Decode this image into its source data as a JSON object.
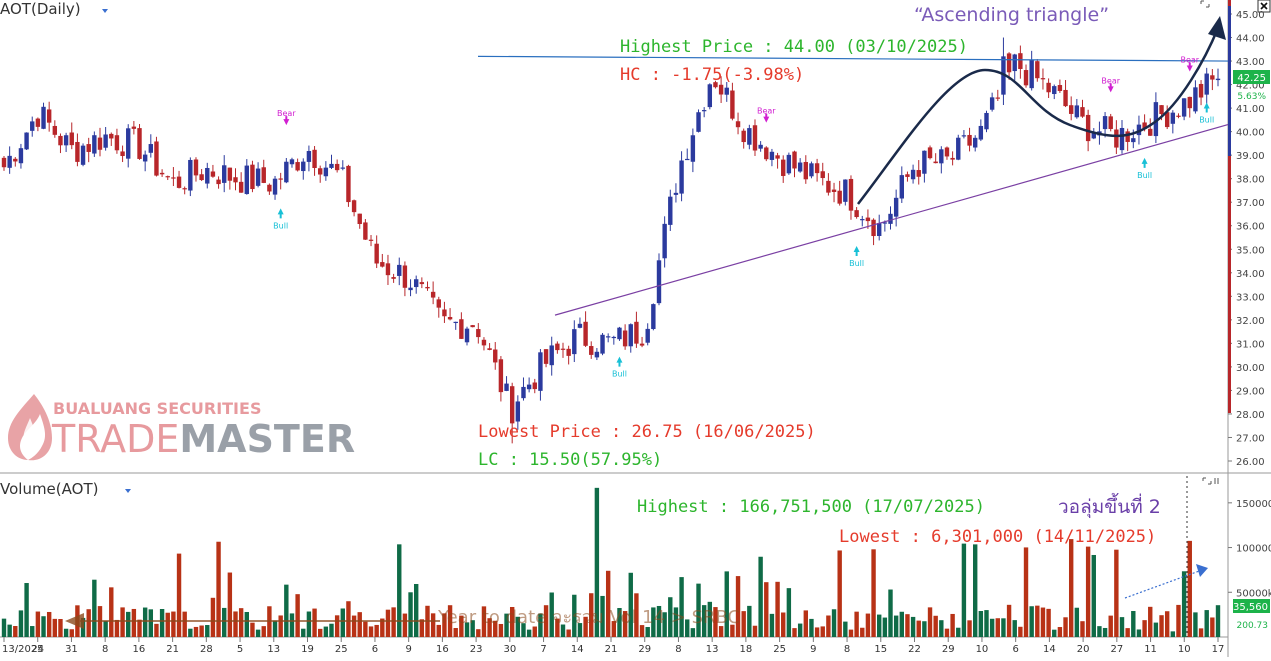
{
  "price_pane": {
    "title": "AOT(Daily)",
    "current_price_badge": "42.25",
    "change_badge": "5.63%",
    "price_ticks": [
      "45.00",
      "44.00",
      "43.00",
      "42.00",
      "41.00",
      "40.00",
      "39.00",
      "38.00",
      "37.00",
      "36.00",
      "35.00",
      "34.00",
      "33.00",
      "32.00",
      "31.00",
      "30.00",
      "29.00",
      "28.00",
      "27.00",
      "26.00"
    ]
  },
  "volume_pane": {
    "title": "Volume(AOT)",
    "volume_ticks": [
      "150000k",
      "100000k",
      "50000k"
    ],
    "current_volume_badge": "35,560",
    "secondary_badge": "200.73"
  },
  "date_axis": {
    "labels": [
      "13/2025",
      "24",
      "31",
      "8",
      "16",
      "21",
      "28",
      "5",
      "13",
      "19",
      "25",
      "6",
      "9",
      "16",
      "23",
      "30",
      "7",
      "14",
      "21",
      "29",
      "8",
      "13",
      "18",
      "25",
      "9",
      "8",
      "15",
      "22",
      "29",
      "10",
      "6",
      "14",
      "20",
      "27",
      "11",
      "10",
      "17"
    ]
  },
  "annotations": {
    "pattern_title": "“Ascending triangle”",
    "highest_price": "Highest Price : 44.00 (03/10/2025)",
    "hc": "HC : -1.75(-3.98%)",
    "lowest_price": "Lowest Price : 26.75 (16/06/2025)",
    "lc": "LC : 15.50(57.95%)",
    "highest_volume": "Highest : 166,751,500 (17/07/2025)",
    "lowest_volume": "Lowest : 6,301,000 (14/11/2025)",
    "wave_label": "วอลุ่มขึ้นที่ 2",
    "faded_text": "Year to date จะรวม Vol 14 > SRBC",
    "bear_label": "Bear",
    "bull_label": "Bull"
  },
  "logo": {
    "company": "BUALUANG SECURITIES",
    "product_part1": "TRADE",
    "product_part2": "MASTER"
  },
  "icons": {
    "close": "close-icon",
    "expand": "expand-icon",
    "dropdown": "dropdown-icon"
  },
  "colors": {
    "up_candle": "#2b3a9e",
    "down_candle": "#b8262a",
    "vol_up": "#0f6b47",
    "vol_down": "#b83216",
    "resistance_line": "#2a6fbf",
    "support_line": "#7a3fa3",
    "highest_text": "#2db52d",
    "lowest_text": "#e53b2c",
    "pattern_text": "#7a5bb8",
    "wave_text": "#6a3fa8",
    "badge_green": "#1db34a",
    "bear_color": "#d11fd1",
    "bull_color": "#18c0d6"
  },
  "chart_data": [
    {
      "type": "candlestick",
      "title": "AOT(Daily)",
      "ylim": [
        25.6,
        45.3
      ],
      "x": [
        "13/2025",
        "24",
        "31",
        "8",
        "16",
        "21",
        "28",
        "5",
        "13",
        "19",
        "25",
        "6",
        "9",
        "16",
        "23",
        "30",
        "7",
        "14",
        "21",
        "29",
        "8",
        "13",
        "18",
        "25",
        "9",
        "8",
        "15",
        "22",
        "29",
        "10",
        "6",
        "14",
        "20",
        "27",
        "11",
        "10",
        "17"
      ],
      "closes": [
        38.5,
        40.8,
        39.2,
        39.8,
        39.4,
        37.8,
        38.4,
        38.0,
        37.8,
        39.3,
        38.0,
        34.5,
        33.8,
        31.8,
        31.9,
        28.3,
        30.1,
        31.3,
        31.0,
        31.6,
        38.4,
        42.5,
        40.1,
        38.9,
        38.0,
        37.4,
        35.9,
        38.6,
        38.7,
        40.0,
        42.9,
        41.8,
        40.3,
        39.8,
        40.5,
        41.2,
        42.25
      ],
      "highest": {
        "price": 44.0,
        "date": "03/10/2025"
      },
      "lowest": {
        "price": 26.75,
        "date": "16/06/2025"
      },
      "last_close": 42.25,
      "change_pct": 5.63,
      "resistance_line": {
        "from": 43.2,
        "to": 43.0
      },
      "support_line": {
        "from": 32.2,
        "to": 40.3
      },
      "pattern": "Ascending triangle"
    },
    {
      "type": "bar",
      "title": "Volume(AOT)",
      "ylim": [
        0,
        180000000
      ],
      "highest": {
        "value": 166751500,
        "date": "17/07/2025"
      },
      "lowest": {
        "value": 6301000,
        "date": "14/11/2025"
      },
      "last_value": 35560000
    }
  ]
}
